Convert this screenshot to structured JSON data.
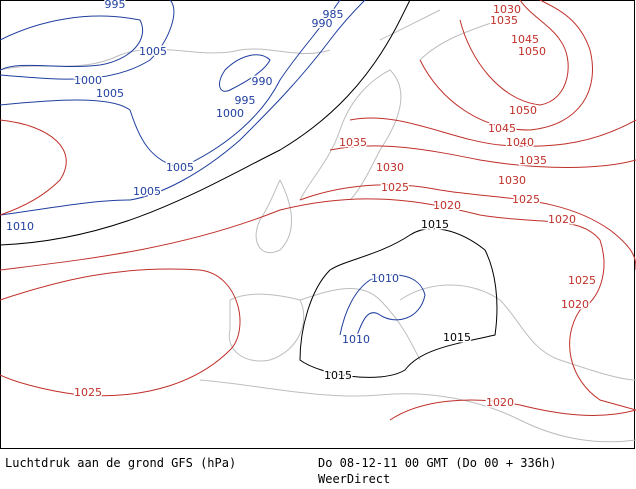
{
  "isobars": [
    {
      "color": "#1f3f9f",
      "labels": [
        995,
        985,
        990,
        1005,
        1000,
        1005,
        990,
        995,
        1000,
        1005,
        1005,
        1010,
        1010,
        1010
      ]
    },
    {
      "color": "#000000",
      "labels": [
        1015,
        1015,
        1015
      ]
    },
    {
      "color": "#c0302a",
      "labels": [
        1030,
        1035,
        1045,
        1050,
        1050,
        1045,
        1040,
        1035,
        1035,
        1030,
        1030,
        1025,
        1025,
        1020,
        1020,
        1025,
        1020,
        1025,
        1020
      ]
    }
  ],
  "footer": {
    "title": "Luchtdruk aan de grond GFS (hPa)",
    "time": "Do 08-12-11 00 GMT (Do 00 + 336h)",
    "source": "WeerDirect"
  }
}
